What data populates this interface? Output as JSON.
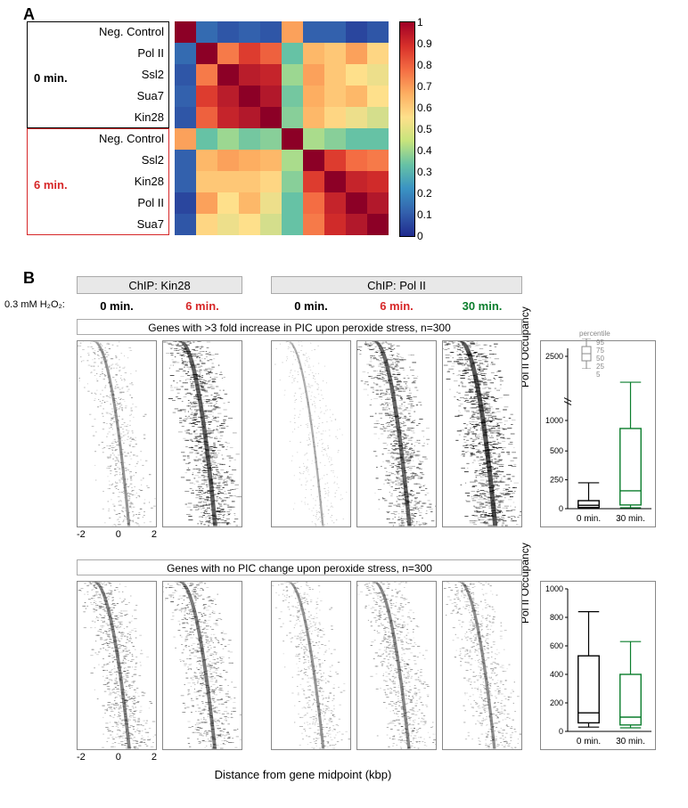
{
  "panelA": {
    "label": "A",
    "row_labels": [
      "Neg. Control",
      "Pol II",
      "Ssl2",
      "Sua7",
      "Kin28",
      "Neg. Control",
      "Ssl2",
      "Kin28",
      "Pol II",
      "Sua7"
    ],
    "group0_label": "0 min.",
    "group6_label": "6 min.",
    "colorbar_ticks": [
      "1",
      "0.9",
      "0.8",
      "0.7",
      "0.6",
      "0.5",
      "0.4",
      "0.3",
      "0.2",
      "0.1",
      "0"
    ],
    "colorbar_stops": [
      "#a00026",
      "#d7302a",
      "#f46d43",
      "#fdae61",
      "#fee08b",
      "#c6e47c",
      "#66c2a5",
      "#3a93c3",
      "#3361ad",
      "#202a8e"
    ],
    "matrix": [
      [
        1.0,
        0.12,
        0.08,
        0.1,
        0.08,
        0.62,
        0.1,
        0.1,
        0.05,
        0.08
      ],
      [
        0.12,
        1.0,
        0.68,
        0.78,
        0.72,
        0.3,
        0.58,
        0.55,
        0.62,
        0.52
      ],
      [
        0.08,
        0.68,
        1.0,
        0.88,
        0.85,
        0.38,
        0.62,
        0.55,
        0.5,
        0.48
      ],
      [
        0.1,
        0.78,
        0.88,
        1.0,
        0.9,
        0.32,
        0.6,
        0.55,
        0.58,
        0.5
      ],
      [
        0.08,
        0.72,
        0.85,
        0.9,
        1.0,
        0.35,
        0.58,
        0.52,
        0.48,
        0.45
      ],
      [
        0.62,
        0.3,
        0.38,
        0.32,
        0.35,
        1.0,
        0.4,
        0.35,
        0.3,
        0.3
      ],
      [
        0.1,
        0.58,
        0.62,
        0.6,
        0.58,
        0.4,
        1.0,
        0.78,
        0.7,
        0.68
      ],
      [
        0.1,
        0.55,
        0.55,
        0.55,
        0.52,
        0.35,
        0.78,
        1.0,
        0.85,
        0.82
      ],
      [
        0.05,
        0.62,
        0.5,
        0.58,
        0.48,
        0.3,
        0.7,
        0.85,
        1.0,
        0.9
      ],
      [
        0.08,
        0.52,
        0.48,
        0.5,
        0.45,
        0.3,
        0.68,
        0.82,
        0.9,
        1.0
      ]
    ]
  },
  "panelB": {
    "label": "B",
    "chip_kin28": "ChIP: Kin28",
    "chip_polii": "ChIP: Pol II",
    "h2o2": "0.3 mM H₂O₂:",
    "times": [
      {
        "t": "0 min.",
        "color": "#000000"
      },
      {
        "t": "6 min.",
        "color": "#d62728"
      },
      {
        "t": "0 min.",
        "color": "#000000"
      },
      {
        "t": "6 min.",
        "color": "#d62728"
      },
      {
        "t": "30 min.",
        "color": "#0a7d2c"
      }
    ],
    "subset1_title": "Genes with >3 fold increase in PIC upon peroxide stress, n=300",
    "subset2_title": "Genes with no PIC change upon peroxide stress, n=300",
    "x_ticks": [
      "-2",
      "0",
      "2"
    ],
    "x_label": "Distance from gene midpoint (kbp)",
    "box_ylabel": "Pol II Occupancy",
    "percentile_legend": [
      "95",
      "75",
      "50",
      "25",
      "5"
    ],
    "percentile_legend_title": "percentile",
    "box1": {
      "yticks": [
        "2500",
        "1000",
        "500",
        "250",
        "0"
      ],
      "ytick_pos": [
        0.05,
        0.45,
        0.64,
        0.82,
        1.0
      ],
      "categories": [
        "0 min.",
        "30 min."
      ],
      "boxes": [
        {
          "p5": 5,
          "p25": 20,
          "p50": 55,
          "p75": 130,
          "p95": 420,
          "color": "#000000"
        },
        {
          "p5": 15,
          "p25": 60,
          "p50": 290,
          "p75": 1300,
          "p95": 2050,
          "color": "#0a7d2c"
        }
      ],
      "ymax": 2600
    },
    "box2": {
      "yticks": [
        "1000",
        "800",
        "600",
        "400",
        "200",
        "0"
      ],
      "categories": [
        "0 min.",
        "30 min."
      ],
      "boxes": [
        {
          "p5": 30,
          "p25": 60,
          "p50": 130,
          "p75": 530,
          "p95": 840,
          "color": "#000000"
        },
        {
          "p5": 25,
          "p25": 45,
          "p50": 100,
          "p75": 400,
          "p95": 630,
          "color": "#0a7d2c"
        }
      ],
      "ymax": 1000
    },
    "heat_intensity": {
      "row1": [
        0.3,
        0.7,
        0.1,
        0.65,
        0.8
      ],
      "row2": [
        0.45,
        0.5,
        0.3,
        0.4,
        0.35
      ]
    }
  }
}
